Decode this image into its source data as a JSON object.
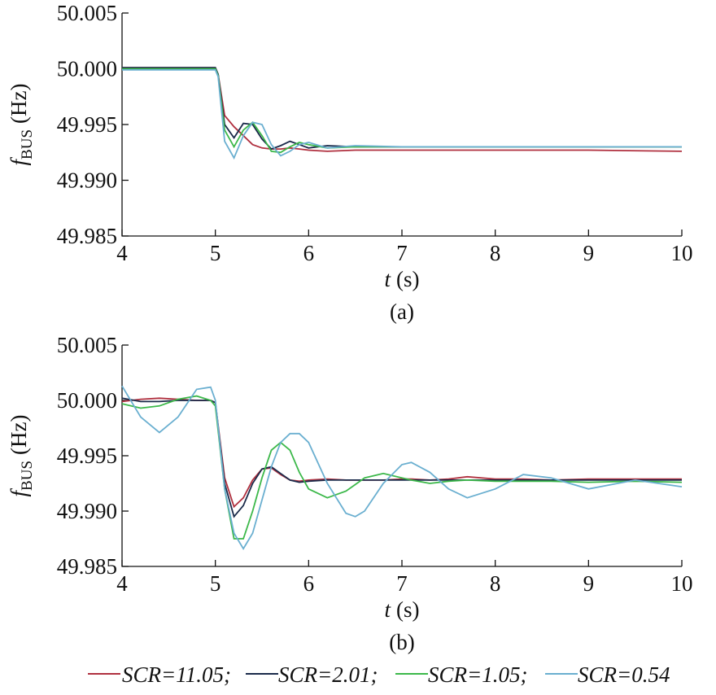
{
  "chart_data": [
    {
      "type": "line",
      "label": "(a)",
      "x_label": {
        "symbol": "t",
        "unit": "(s)"
      },
      "y_label": {
        "symbol": "f",
        "subscript": "BUS",
        "unit": "(Hz)"
      },
      "xlim": [
        4,
        10
      ],
      "xticks": [
        4,
        5,
        6,
        7,
        8,
        9,
        10
      ],
      "ylim": [
        49.985,
        50.005
      ],
      "yticks": [
        49.985,
        {
          "value": 49.99,
          "label": "49.990"
        },
        49.995,
        {
          "value": 50,
          "label": "50.000"
        },
        50.005
      ],
      "x": [
        4,
        5,
        5.03,
        5.1,
        5.2,
        5.3,
        5.4,
        5.5,
        5.6,
        5.7,
        5.8,
        5.9,
        6,
        6.2,
        6.5,
        7,
        8,
        9,
        10
      ],
      "series": [
        {
          "color": "#b0303f",
          "values": [
            50.0001,
            50.0001,
            49.9995,
            49.9958,
            49.9948,
            49.994,
            49.9932,
            49.9929,
            49.9928,
            49.9928,
            49.9929,
            49.9928,
            49.9927,
            49.9926,
            49.9927,
            49.9927,
            49.9927,
            49.9927,
            49.9926
          ]
        },
        {
          "color": "#1a2a4a",
          "values": [
            50.0001,
            50.0001,
            49.9995,
            49.995,
            49.9938,
            49.9951,
            49.995,
            49.9937,
            49.9928,
            49.9931,
            49.9935,
            49.9932,
            49.9929,
            49.9931,
            49.993,
            49.993,
            49.993,
            49.993,
            49.993
          ]
        },
        {
          "color": "#3cb84a",
          "values": [
            50,
            50,
            49.9994,
            49.9945,
            49.993,
            49.9945,
            49.9952,
            49.994,
            49.9926,
            49.9925,
            49.993,
            49.9934,
            49.9932,
            49.9929,
            49.993,
            49.993,
            49.993,
            49.993,
            49.993
          ]
        },
        {
          "color": "#6aafd0",
          "values": [
            49.9999,
            49.9999,
            49.9993,
            49.9935,
            49.992,
            49.994,
            49.9952,
            49.995,
            49.9932,
            49.9922,
            49.9926,
            49.9932,
            49.9934,
            49.9929,
            49.9931,
            49.993,
            49.993,
            49.993,
            49.993
          ]
        }
      ]
    },
    {
      "type": "line",
      "label": "(b)",
      "x_label": {
        "symbol": "t",
        "unit": "(s)"
      },
      "y_label": {
        "symbol": "f",
        "subscript": "BUS",
        "unit": "(Hz)"
      },
      "xlim": [
        4,
        10
      ],
      "xticks": [
        4,
        5,
        6,
        7,
        8,
        9,
        10
      ],
      "ylim": [
        49.985,
        50.005
      ],
      "yticks": [
        49.985,
        {
          "value": 49.99,
          "label": "49.990"
        },
        49.995,
        {
          "value": 50,
          "label": "50.000"
        },
        50.005
      ],
      "x": [
        4,
        4.2,
        4.4,
        4.6,
        4.8,
        4.95,
        5,
        5.1,
        5.2,
        5.3,
        5.4,
        5.5,
        5.6,
        5.7,
        5.8,
        5.9,
        6,
        6.2,
        6.4,
        6.5,
        6.6,
        6.8,
        7,
        7.1,
        7.3,
        7.5,
        7.7,
        8,
        8.3,
        8.6,
        9,
        9.5,
        10
      ],
      "series": [
        {
          "name": "SCR=11.05;",
          "color": "#b0303f",
          "values": [
            49.9999,
            50.0001,
            50.0002,
            50.0001,
            50,
            50,
            49.9998,
            49.993,
            49.9904,
            49.9912,
            49.9928,
            49.9938,
            49.9939,
            49.9933,
            49.9928,
            49.9927,
            49.9928,
            49.9929,
            49.9928,
            49.9928,
            49.9928,
            49.9928,
            49.9929,
            49.9929,
            49.9928,
            49.9929,
            49.9931,
            49.9929,
            49.9929,
            49.9928,
            49.9929,
            49.9929,
            49.9929
          ]
        },
        {
          "name": "SCR=2.01;",
          "color": "#1a2a4a",
          "values": [
            50.0002,
            49.9999,
            49.9999,
            50,
            50,
            50,
            49.9998,
            49.9925,
            49.9895,
            49.9905,
            49.9925,
            49.9938,
            49.994,
            49.9934,
            49.9928,
            49.9926,
            49.9927,
            49.9928,
            49.9928,
            49.9928,
            49.9928,
            49.9928,
            49.9928,
            49.9928,
            49.9928,
            49.9928,
            49.9928,
            49.9928,
            49.9928,
            49.9928,
            49.9928,
            49.9928,
            49.9928
          ]
        },
        {
          "name": "SCR=1.05;",
          "color": "#3cb84a",
          "values": [
            49.9997,
            49.9993,
            49.9995,
            50.0001,
            50.0004,
            50,
            49.9995,
            49.992,
            49.9875,
            49.9875,
            49.99,
            49.993,
            49.9955,
            49.9962,
            49.9955,
            49.9935,
            49.992,
            49.9912,
            49.9918,
            49.9924,
            49.993,
            49.9934,
            49.993,
            49.9928,
            49.9925,
            49.9927,
            49.9928,
            49.9927,
            49.9927,
            49.9927,
            49.9926,
            49.9927,
            49.9926
          ]
        },
        {
          "name": "SCR=0.54",
          "color": "#6aafd0",
          "values": [
            50.0013,
            49.9985,
            49.9971,
            49.9985,
            50.001,
            50.0012,
            50,
            49.992,
            49.988,
            49.9866,
            49.988,
            49.991,
            49.994,
            49.9962,
            49.997,
            49.997,
            49.9962,
            49.9925,
            49.9898,
            49.9895,
            49.99,
            49.9925,
            49.9942,
            49.9944,
            49.9935,
            49.992,
            49.9912,
            49.992,
            49.9933,
            49.993,
            49.992,
            49.9928,
            49.9922
          ]
        }
      ]
    }
  ]
}
